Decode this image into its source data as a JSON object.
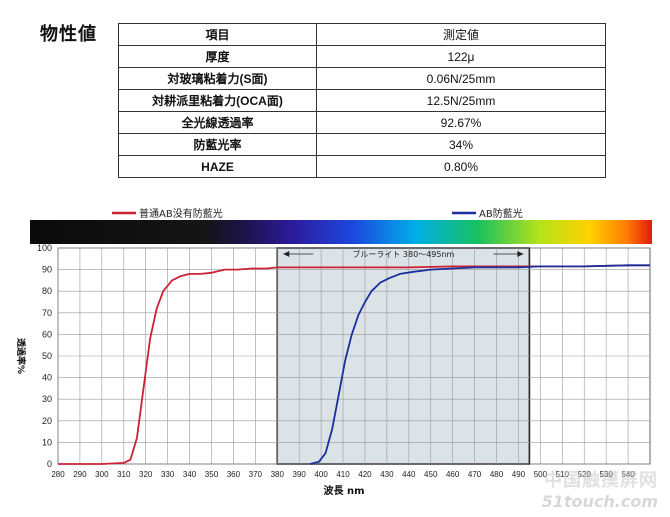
{
  "page_title": "物性値",
  "table": {
    "header": [
      "項目",
      "測定値"
    ],
    "rows": [
      [
        "厚度",
        "122μ"
      ],
      [
        "対玻璃粘着力(S面)",
        "0.06N/25mm"
      ],
      [
        "対耕派里粘着力(OCA面)",
        "12.5N/25mm"
      ],
      [
        "全光線透過率",
        "92.67%"
      ],
      [
        "防藍光率",
        "34%"
      ],
      [
        "HAZE",
        "0.80%"
      ]
    ]
  },
  "chart_data": {
    "type": "line",
    "xlabel": "波長 nm",
    "ylabel": "透過率%",
    "xlim": [
      280,
      550
    ],
    "ylim": [
      0,
      100
    ],
    "xticks": [
      280,
      290,
      300,
      310,
      320,
      330,
      340,
      350,
      360,
      370,
      380,
      390,
      400,
      410,
      420,
      430,
      440,
      450,
      460,
      470,
      480,
      490,
      500,
      510,
      520,
      530,
      540
    ],
    "yticks": [
      0,
      10,
      20,
      30,
      40,
      50,
      60,
      70,
      80,
      90,
      100
    ],
    "grid": true,
    "legend_position": "top",
    "annotation": {
      "text": "ブルーライト 380～495nm",
      "x_range": [
        380,
        495
      ]
    },
    "series": [
      {
        "name": "普通AB没有防藍光",
        "color": "#cc2233",
        "points": [
          [
            280,
            0
          ],
          [
            300,
            0
          ],
          [
            310,
            0.5
          ],
          [
            313,
            2
          ],
          [
            316,
            12
          ],
          [
            319,
            35
          ],
          [
            322,
            58
          ],
          [
            325,
            72
          ],
          [
            328,
            80
          ],
          [
            332,
            85
          ],
          [
            336,
            87
          ],
          [
            340,
            88
          ],
          [
            345,
            88
          ],
          [
            350,
            88.5
          ],
          [
            356,
            90
          ],
          [
            362,
            90
          ],
          [
            368,
            90.5
          ],
          [
            375,
            90.5
          ],
          [
            380,
            91
          ],
          [
            390,
            91
          ],
          [
            400,
            91
          ],
          [
            420,
            91
          ],
          [
            440,
            91
          ],
          [
            460,
            91.5
          ],
          [
            480,
            91.5
          ],
          [
            500,
            91.5
          ],
          [
            520,
            91.5
          ],
          [
            540,
            92
          ],
          [
            550,
            92
          ]
        ]
      },
      {
        "name": "AB防藍光",
        "color": "#1a2f9c",
        "points": [
          [
            395,
            0
          ],
          [
            399,
            1
          ],
          [
            402,
            5
          ],
          [
            405,
            16
          ],
          [
            408,
            32
          ],
          [
            411,
            48
          ],
          [
            414,
            60
          ],
          [
            417,
            69
          ],
          [
            420,
            75
          ],
          [
            423,
            80
          ],
          [
            427,
            84
          ],
          [
            431,
            86
          ],
          [
            436,
            88
          ],
          [
            442,
            89
          ],
          [
            450,
            90
          ],
          [
            460,
            90.5
          ],
          [
            470,
            91
          ],
          [
            480,
            91
          ],
          [
            490,
            91
          ],
          [
            500,
            91.5
          ],
          [
            520,
            91.5
          ],
          [
            540,
            92
          ],
          [
            550,
            92
          ]
        ]
      }
    ]
  },
  "watermark": {
    "cn": "中国触摸屏网",
    "url": "51touch.com"
  }
}
